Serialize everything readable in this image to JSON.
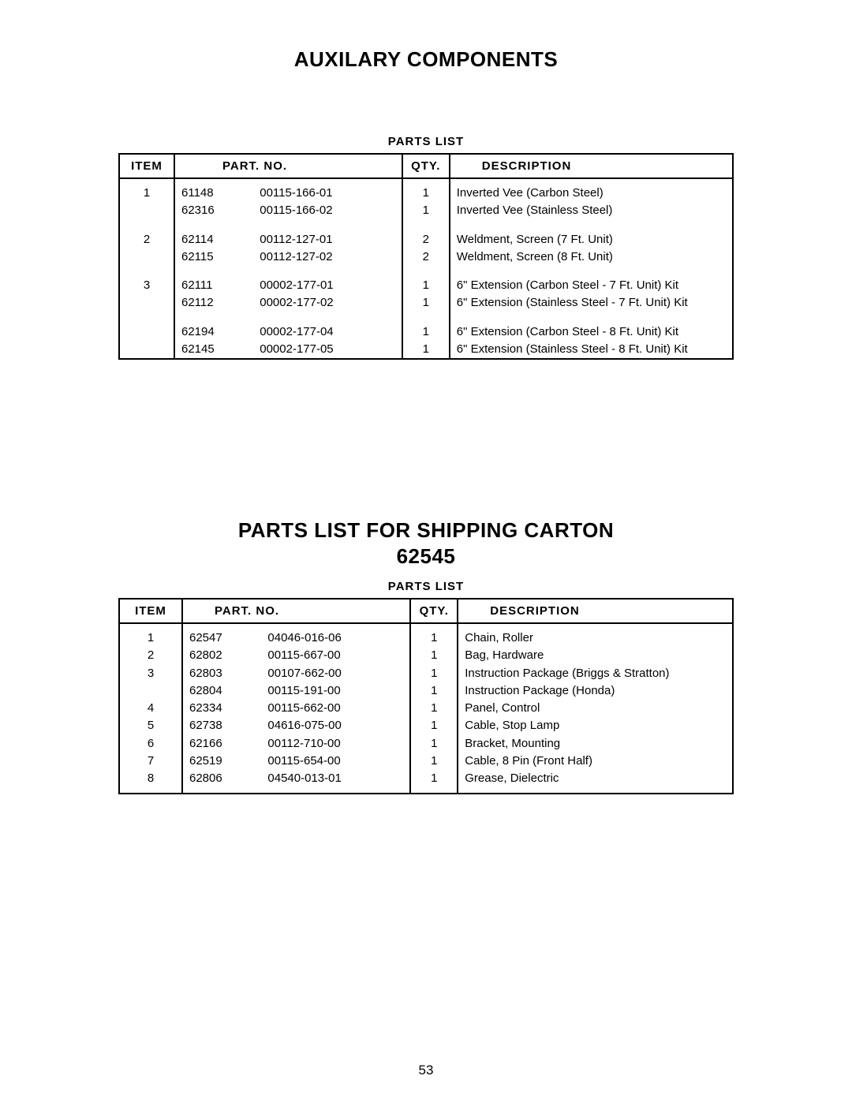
{
  "page_number": "53",
  "section1": {
    "title": "AUXILARY COMPONENTS",
    "caption": "PARTS LIST",
    "columns": {
      "item": "ITEM",
      "part": "PART. NO.",
      "qty": "QTY.",
      "desc": "DESCRIPTION"
    },
    "groups": [
      {
        "item": "1",
        "rows": [
          {
            "p1": "61148",
            "p2": "00115-166-01",
            "qty": "1",
            "desc": "Inverted Vee (Carbon Steel)"
          },
          {
            "p1": "62316",
            "p2": "00115-166-02",
            "qty": "1",
            "desc": "Inverted Vee (Stainless Steel)"
          }
        ]
      },
      {
        "item": "2",
        "rows": [
          {
            "p1": "62114",
            "p2": "00112-127-01",
            "qty": "2",
            "desc": "Weldment, Screen (7 Ft. Unit)"
          },
          {
            "p1": "62115",
            "p2": "00112-127-02",
            "qty": "2",
            "desc": "Weldment, Screen (8 Ft. Unit)"
          }
        ]
      },
      {
        "item": "3",
        "rows": [
          {
            "p1": "62111",
            "p2": "00002-177-01",
            "qty": "1",
            "desc": "6\" Extension (Carbon Steel - 7 Ft. Unit) Kit"
          },
          {
            "p1": "62112",
            "p2": "00002-177-02",
            "qty": "1",
            "desc": "6\" Extension (Stainless Steel - 7 Ft. Unit) Kit"
          }
        ]
      },
      {
        "item": "",
        "rows": [
          {
            "p1": "62194",
            "p2": "00002-177-04",
            "qty": "1",
            "desc": "6\" Extension (Carbon Steel - 8 Ft. Unit) Kit"
          },
          {
            "p1": "62145",
            "p2": "00002-177-05",
            "qty": "1",
            "desc": "6\" Extension (Stainless Steel - 8 Ft. Unit) Kit"
          }
        ]
      }
    ]
  },
  "section2": {
    "title_line1": "PARTS LIST FOR SHIPPING CARTON",
    "title_line2": "62545",
    "caption": "PARTS LIST",
    "columns": {
      "item": "ITEM",
      "part": "PART. NO.",
      "qty": "QTY.",
      "desc": "DESCRIPTION"
    },
    "rows": [
      {
        "item": "1",
        "p1": "62547",
        "p2": "04046-016-06",
        "qty": "1",
        "desc": "Chain, Roller"
      },
      {
        "item": "2",
        "p1": "62802",
        "p2": "00115-667-00",
        "qty": "1",
        "desc": "Bag, Hardware"
      },
      {
        "item": "3",
        "p1": "62803",
        "p2": "00107-662-00",
        "qty": "1",
        "desc": "Instruction Package (Briggs & Stratton)"
      },
      {
        "item": "",
        "p1": "62804",
        "p2": "00115-191-00",
        "qty": "1",
        "desc": "Instruction Package (Honda)"
      },
      {
        "item": "4",
        "p1": "62334",
        "p2": "00115-662-00",
        "qty": "1",
        "desc": "Panel, Control"
      },
      {
        "item": "5",
        "p1": "62738",
        "p2": "04616-075-00",
        "qty": "1",
        "desc": "Cable, Stop Lamp"
      },
      {
        "item": "6",
        "p1": "62166",
        "p2": "00112-710-00",
        "qty": "1",
        "desc": "Bracket, Mounting"
      },
      {
        "item": "7",
        "p1": "62519",
        "p2": "00115-654-00",
        "qty": "1",
        "desc": "Cable, 8 Pin (Front Half)"
      },
      {
        "item": "8",
        "p1": "62806",
        "p2": "04540-013-01",
        "qty": "1",
        "desc": "Grease, Dielectric"
      }
    ]
  }
}
